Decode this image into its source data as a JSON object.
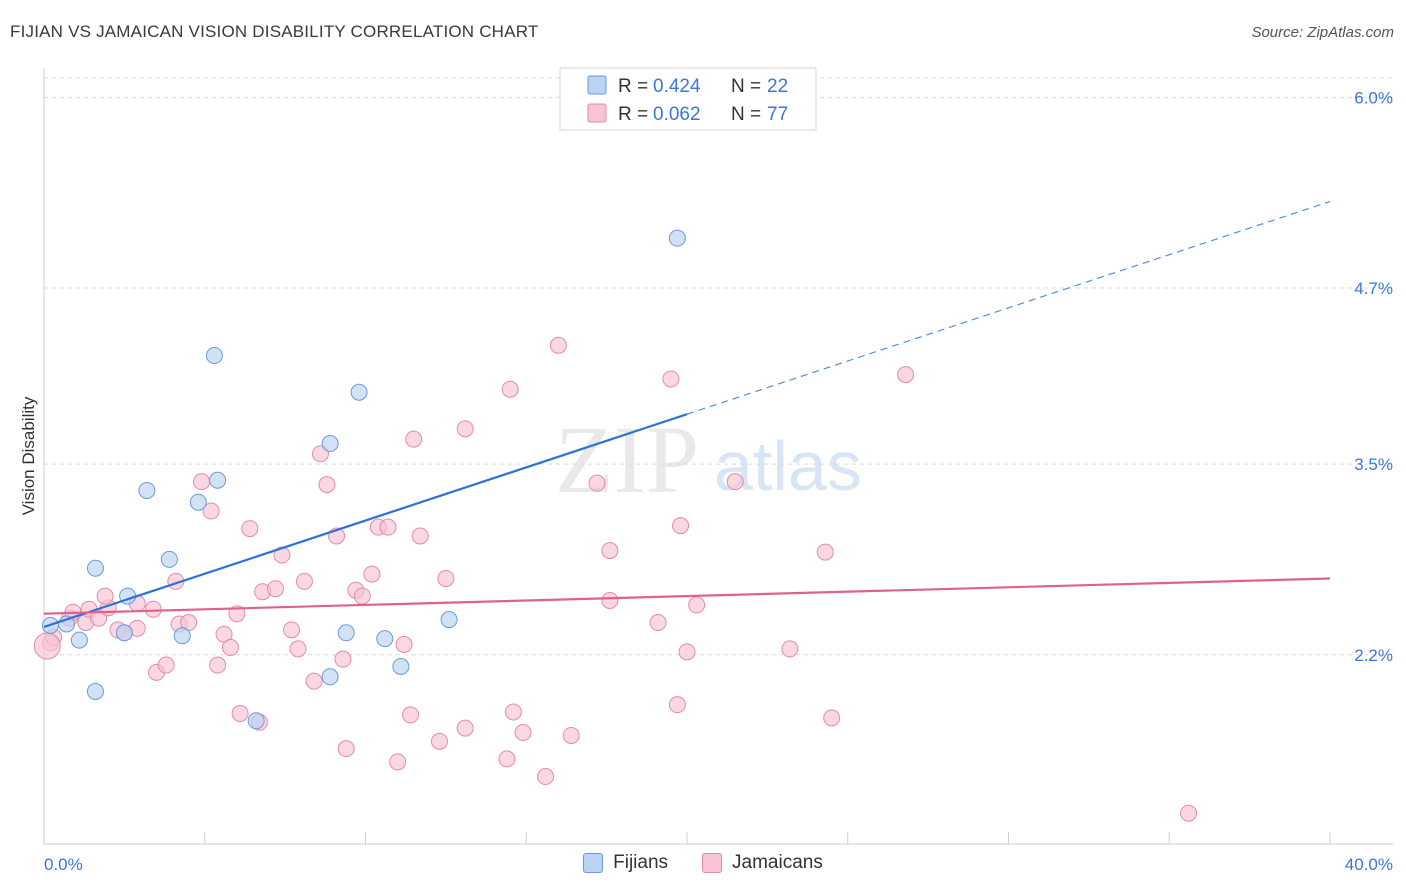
{
  "title": "FIJIAN VS JAMAICAN VISION DISABILITY CORRELATION CHART",
  "source": "Source: ZipAtlas.com",
  "watermark": {
    "zip": "ZIP",
    "atlas": "atlas"
  },
  "colors": {
    "fijian_fill": "#b8d3f3",
    "fijian_stroke": "#6b9bd8",
    "fijian_line": "#2f72d4",
    "jamaican_fill": "#f8c3d4",
    "jamaican_stroke": "#e68aaa",
    "jamaican_line": "#e0608e",
    "value_text": "#3a78d8",
    "grid": "#d9d9d9"
  },
  "legend_top": [
    {
      "r_label": "R =",
      "r_value": "0.424",
      "n_label": "N =",
      "n_value": "22"
    },
    {
      "r_label": "R =",
      "r_value": "0.062",
      "n_label": "N =",
      "n_value": "77"
    }
  ],
  "legend_bottom": [
    {
      "label": "Fijians"
    },
    {
      "label": "Jamaicans"
    }
  ],
  "chart_data": {
    "type": "scatter",
    "title": "FIJIAN VS JAMAICAN VISION DISABILITY CORRELATION CHART",
    "xlabel": "",
    "ylabel": "Vision Disability",
    "xlim": [
      0,
      40
    ],
    "ylim": [
      0.91,
      6.2
    ],
    "x_tick_labels": [
      "0.0%",
      "40.0%"
    ],
    "y_ticks": [
      2.2,
      3.5,
      4.7,
      6.0
    ],
    "y_tick_labels": [
      "2.2%",
      "3.5%",
      "4.7%",
      "6.0%"
    ],
    "series": [
      {
        "name": "Fijians",
        "r": 0.424,
        "n": 22,
        "trend": {
          "x0": 0,
          "y0": 2.39,
          "x1": 20,
          "y1": 3.84,
          "x_dashed_end": 40,
          "y_dashed_end": 5.29
        },
        "points": [
          [
            0.2,
            2.4
          ],
          [
            0.7,
            2.41
          ],
          [
            1.1,
            2.3
          ],
          [
            1.6,
            2.79
          ],
          [
            1.6,
            1.95
          ],
          [
            2.6,
            2.6
          ],
          [
            2.5,
            2.35
          ],
          [
            3.2,
            3.32
          ],
          [
            3.9,
            2.85
          ],
          [
            4.3,
            2.33
          ],
          [
            4.8,
            3.24
          ],
          [
            5.3,
            4.24
          ],
          [
            5.4,
            3.39
          ],
          [
            6.6,
            1.75
          ],
          [
            8.9,
            2.05
          ],
          [
            8.9,
            3.64
          ],
          [
            9.4,
            2.35
          ],
          [
            9.8,
            3.99
          ],
          [
            10.6,
            2.31
          ],
          [
            11.1,
            2.12
          ],
          [
            12.6,
            2.44
          ],
          [
            19.7,
            5.04
          ]
        ]
      },
      {
        "name": "Jamaicans",
        "r": 0.062,
        "n": 77,
        "trend": {
          "x0": 0,
          "y0": 2.48,
          "x1": 40,
          "y1": 2.72
        },
        "points": [
          [
            0.2,
            2.28
          ],
          [
            0.3,
            2.32
          ],
          [
            0.8,
            2.45
          ],
          [
            0.9,
            2.49
          ],
          [
            1.3,
            2.42
          ],
          [
            1.4,
            2.51
          ],
          [
            1.7,
            2.45
          ],
          [
            2.0,
            2.52
          ],
          [
            2.3,
            2.37
          ],
          [
            2.5,
            2.35
          ],
          [
            2.9,
            2.38
          ],
          [
            2.9,
            2.55
          ],
          [
            3.4,
            2.51
          ],
          [
            3.5,
            2.08
          ],
          [
            3.8,
            2.13
          ],
          [
            4.1,
            2.7
          ],
          [
            4.2,
            2.41
          ],
          [
            4.5,
            2.42
          ],
          [
            4.9,
            3.38
          ],
          [
            5.2,
            3.18
          ],
          [
            5.4,
            2.13
          ],
          [
            5.6,
            2.34
          ],
          [
            5.8,
            2.25
          ],
          [
            6.0,
            2.48
          ],
          [
            6.1,
            1.8
          ],
          [
            6.4,
            3.06
          ],
          [
            6.7,
            1.74
          ],
          [
            6.8,
            2.63
          ],
          [
            7.2,
            2.65
          ],
          [
            7.4,
            2.88
          ],
          [
            7.7,
            2.37
          ],
          [
            7.9,
            2.24
          ],
          [
            8.1,
            2.7
          ],
          [
            8.4,
            2.02
          ],
          [
            8.6,
            3.57
          ],
          [
            8.8,
            3.36
          ],
          [
            9.1,
            3.01
          ],
          [
            9.4,
            1.56
          ],
          [
            9.7,
            2.64
          ],
          [
            9.9,
            2.6
          ],
          [
            10.2,
            2.75
          ],
          [
            10.4,
            3.07
          ],
          [
            10.7,
            3.07
          ],
          [
            11.0,
            1.47
          ],
          [
            11.2,
            2.27
          ],
          [
            11.4,
            1.79
          ],
          [
            11.5,
            3.67
          ],
          [
            11.7,
            3.01
          ],
          [
            12.3,
            1.61
          ],
          [
            12.5,
            2.72
          ],
          [
            13.1,
            1.7
          ],
          [
            13.1,
            3.74
          ],
          [
            14.4,
            1.49
          ],
          [
            14.5,
            4.01
          ],
          [
            14.6,
            1.81
          ],
          [
            14.9,
            1.67
          ],
          [
            15.6,
            1.37
          ],
          [
            16.0,
            4.31
          ],
          [
            16.4,
            1.65
          ],
          [
            17.2,
            3.37
          ],
          [
            17.6,
            2.91
          ],
          [
            17.6,
            2.57
          ],
          [
            19.1,
            2.42
          ],
          [
            19.5,
            4.08
          ],
          [
            19.7,
            1.86
          ],
          [
            19.8,
            3.08
          ],
          [
            20.0,
            2.22
          ],
          [
            20.3,
            2.54
          ],
          [
            21.5,
            3.38
          ],
          [
            23.2,
            2.24
          ],
          [
            24.3,
            2.9
          ],
          [
            24.5,
            1.77
          ],
          [
            26.8,
            4.11
          ],
          [
            35.6,
            1.12
          ],
          [
            0.1,
            2.26
          ],
          [
            1.9,
            2.6
          ],
          [
            9.3,
            2.17
          ]
        ]
      }
    ]
  }
}
